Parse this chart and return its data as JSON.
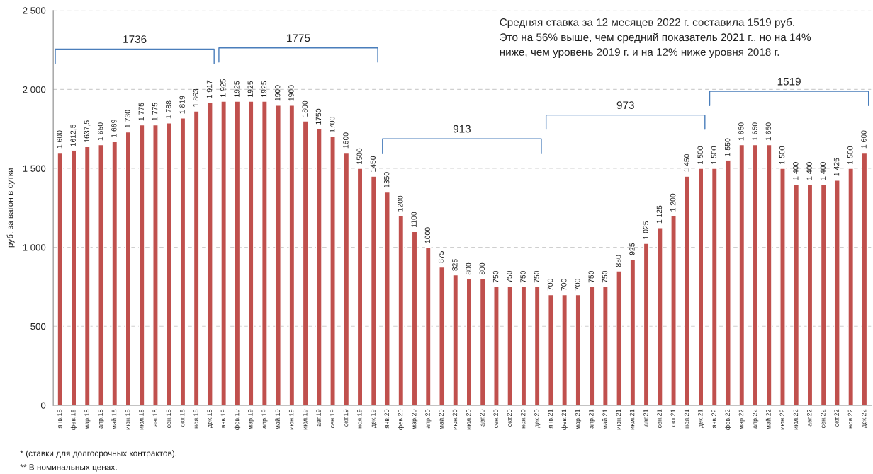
{
  "chart_data": {
    "type": "bar",
    "categories": [
      "янв.18",
      "фев.18",
      "мар.18",
      "апр.18",
      "май.18",
      "июн.18",
      "июл.18",
      "авг.18",
      "сен.18",
      "окт.18",
      "ноя.18",
      "дек.18",
      "янв.19",
      "фев.19",
      "мар.19",
      "апр.19",
      "май.19",
      "июн.19",
      "июл.19",
      "авг.19",
      "сен.19",
      "окт.19",
      "ноя.19",
      "дек.19",
      "янв.20",
      "фев.20",
      "мар.20",
      "апр.20",
      "май.20",
      "июн.20",
      "июл.20",
      "авг.20",
      "сен.20",
      "окт.20",
      "ноя.20",
      "дек.20",
      "янв.21",
      "фев.21",
      "мар.21",
      "апр.21",
      "май.21",
      "июн.21",
      "июл.21",
      "авг.21",
      "сен.21",
      "окт.21",
      "ноя.21",
      "дек.21",
      "янв.22",
      "фев.22",
      "мар.22",
      "апр.22",
      "май.22",
      "июн.22",
      "июл.22",
      "авг.22",
      "сен.22",
      "окт.22",
      "ноя.22",
      "дек.22"
    ],
    "values": [
      1600,
      1612.5,
      1637.5,
      1650,
      1669,
      1730,
      1775,
      1775,
      1788,
      1819,
      1863,
      1917,
      1925,
      1925,
      1925,
      1925,
      1900,
      1900,
      1800,
      1750,
      1700,
      1600,
      1500,
      1450,
      1350,
      1200,
      1100,
      1000,
      875,
      825,
      800,
      800,
      750,
      750,
      750,
      750,
      700,
      700,
      700,
      750,
      750,
      850,
      925,
      1025,
      1125,
      1200,
      1450,
      1500,
      1500,
      1550,
      1650,
      1650,
      1650,
      1500,
      1400,
      1400,
      1400,
      1425,
      1500,
      1600
    ],
    "value_labels": [
      "1 600",
      "1612,5",
      "1637,5",
      "1 650",
      "1 669",
      "1 730",
      "1 775",
      "1 775",
      "1 788",
      "1 819",
      "1 863",
      "1 917",
      "1 925",
      "1925",
      "1925",
      "1925",
      "1900",
      "1900",
      "1800",
      "1750",
      "1700",
      "1600",
      "1500",
      "1450",
      "1350",
      "1200",
      "1100",
      "1000",
      "875",
      "825",
      "800",
      "800",
      "750",
      "750",
      "750",
      "750",
      "700",
      "700",
      "700",
      "750",
      "750",
      "850",
      "925",
      "1 025",
      "1 125",
      "1 200",
      "1 450",
      "1 500",
      "1 500",
      "1 550",
      "1 650",
      "1 650",
      "1 650",
      "1 500",
      "1 400",
      "1 400",
      "1 400",
      "1 425",
      "1 500",
      "1 600"
    ],
    "color": "#c0504d",
    "ylabel": "руб. за вагон в сутки",
    "ylim": [
      0,
      2500
    ],
    "yticks": [
      0,
      500,
      {
        "value": 1000,
        "label": "1 000"
      },
      {
        "value": 1500,
        "label": "1 500"
      },
      {
        "value": 2000,
        "label": "2 000"
      },
      {
        "value": 2500,
        "label": "2 500"
      }
    ],
    "grid": "y",
    "annotations": [
      "Средняя ставка за 12 месяцев 2022 г. составила 1519 руб.\nЭто на 56% выше, чем средний показатель 2021 г., но на 14%\nниже, чем уровень 2019 г. и на 12% ниже уровня 2018 г.",
      "1736",
      "1775",
      "913",
      "973",
      "1519",
      "* (ставки для долгосрочных контрактов).",
      "** В номинальных ценах."
    ]
  }
}
